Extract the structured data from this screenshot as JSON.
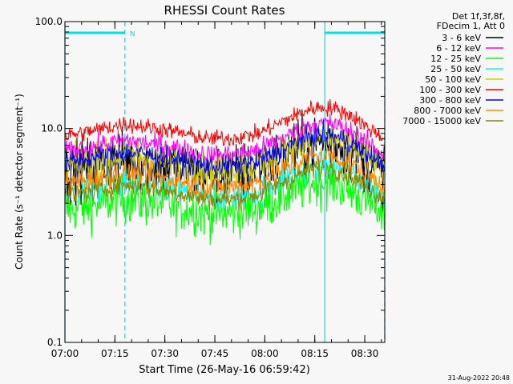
{
  "chart_data": {
    "type": "line",
    "title": "RHESSI Count Rates",
    "xlabel": "Start Time (26-May-16 06:59:42)",
    "ylabel": "Count Rate (s⁻¹ detector segment⁻¹)",
    "yscale": "log",
    "ylim": [
      0.1,
      100.0
    ],
    "xlim_minutes": [
      0,
      96
    ],
    "x_ticks": [
      "07:00",
      "07:15",
      "07:30",
      "07:45",
      "08:00",
      "08:15",
      "08:30"
    ],
    "y_ticks": [
      "0.1",
      "1.0",
      "10.0",
      "100.0"
    ],
    "legend_header": [
      "Det 1f,3f,8f,",
      "FDecim 1, Att 0"
    ],
    "footer_date": "31-Aug-2022 20:48",
    "night_marker_label": "N",
    "annotations": {
      "solid_lines_minutes": [
        0,
        78
      ],
      "dashed_lines_minutes": [
        18,
        96
      ],
      "night_bars": [
        [
          0,
          18
        ],
        [
          78,
          96
        ]
      ]
    },
    "series": [
      {
        "name": "3 - 6 keV",
        "color": "#000000",
        "level": 4.0,
        "noise": 1.9
      },
      {
        "name": "6 - 12 keV",
        "color": "#ff00ff",
        "level": 6.0,
        "noise": 1.25
      },
      {
        "name": "12 - 25 keV",
        "color": "#00ff00",
        "level": 1.7,
        "noise": 1.7
      },
      {
        "name": "25 - 50 keV",
        "color": "#00ffff",
        "level": 2.4,
        "noise": 1.35
      },
      {
        "name": "50 - 100 keV",
        "color": "#cccc00",
        "level": 4.4,
        "noise": 1.45
      },
      {
        "name": "100 - 300 keV",
        "color": "#ff0000",
        "level": 8.5,
        "noise": 1.2
      },
      {
        "name": "300 - 800 keV",
        "color": "#0000ff",
        "level": 4.7,
        "noise": 1.25
      },
      {
        "name": "800 - 7000 keV",
        "color": "#ff8800",
        "level": 3.0,
        "noise": 1.3
      },
      {
        "name": "7000 - 15000 keV",
        "color": "#888800",
        "level": 2.3,
        "noise": 1.25
      }
    ],
    "shape_minutes": [
      0,
      10,
      18,
      30,
      42,
      50,
      58,
      65,
      70,
      75,
      80,
      86,
      90,
      96
    ],
    "shape_factor": [
      1.0,
      1.15,
      1.3,
      1.15,
      0.95,
      0.95,
      1.05,
      1.35,
      1.6,
      1.85,
      1.85,
      1.55,
      1.25,
      0.95
    ]
  },
  "colors": {
    "background": "#f7f7f7",
    "axis": "#000000",
    "marker": "#00e0e8"
  }
}
